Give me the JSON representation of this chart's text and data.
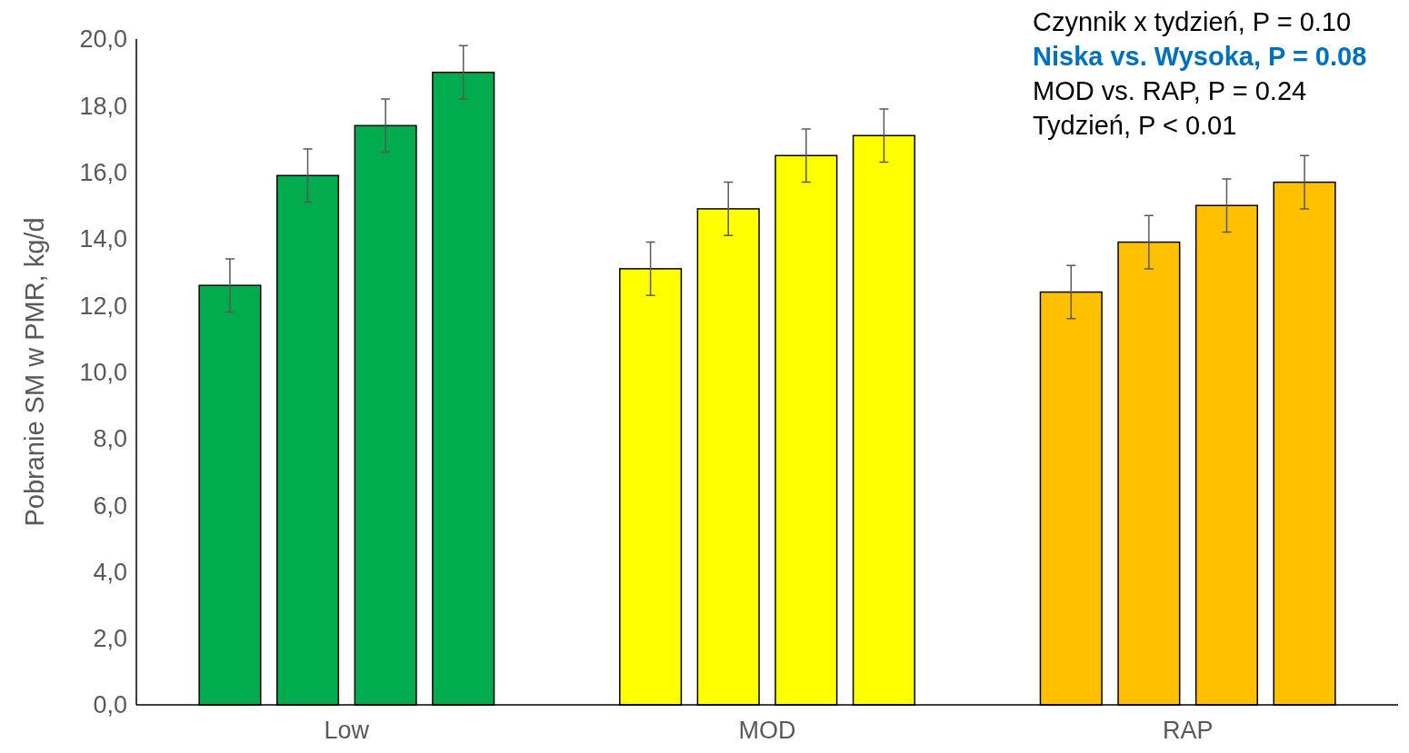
{
  "chart_data": {
    "type": "bar",
    "categories": [
      "Low",
      "MOD",
      "RAP"
    ],
    "ylabel": "Pobranie SM w PMR, kg/d",
    "ylim": [
      0,
      20
    ],
    "yticks": [
      {
        "value": 0,
        "label": "0,0"
      },
      {
        "value": 2,
        "label": "2,0"
      },
      {
        "value": 4,
        "label": "4,0"
      },
      {
        "value": 6,
        "label": "6,0"
      },
      {
        "value": 8,
        "label": "8,0"
      },
      {
        "value": 10,
        "label": "10,0"
      },
      {
        "value": 12,
        "label": "12,0"
      },
      {
        "value": 14,
        "label": "14,0"
      },
      {
        "value": 16,
        "label": "16,0"
      },
      {
        "value": 18,
        "label": "18,0"
      },
      {
        "value": 20,
        "label": "20,0"
      }
    ],
    "grid": false,
    "series": [
      {
        "colors": [
          "#00ac4e",
          "#ffff00",
          "#ffc000"
        ],
        "values": [
          12.6,
          13.1,
          12.4
        ],
        "errors": [
          0.8,
          0.8,
          0.8
        ]
      },
      {
        "colors": [
          "#00ac4e",
          "#ffff00",
          "#ffc000"
        ],
        "values": [
          15.9,
          14.9,
          13.9
        ],
        "errors": [
          0.8,
          0.8,
          0.8
        ]
      },
      {
        "colors": [
          "#00ac4e",
          "#ffff00",
          "#ffc000"
        ],
        "values": [
          17.4,
          16.5,
          15.0
        ],
        "errors": [
          0.8,
          0.8,
          0.8
        ]
      },
      {
        "colors": [
          "#00ac4e",
          "#ffff00",
          "#ffc000"
        ],
        "values": [
          19.0,
          17.1,
          15.7
        ],
        "errors": [
          0.8,
          0.8,
          0.8
        ]
      }
    ],
    "annotations": [
      "Czynnik x tydzień, P = 0.10",
      "Niska vs. Wysoka, P = 0.08",
      "MOD vs. RAP, P = 0.24",
      "Tydzień, P < 0.01"
    ]
  }
}
